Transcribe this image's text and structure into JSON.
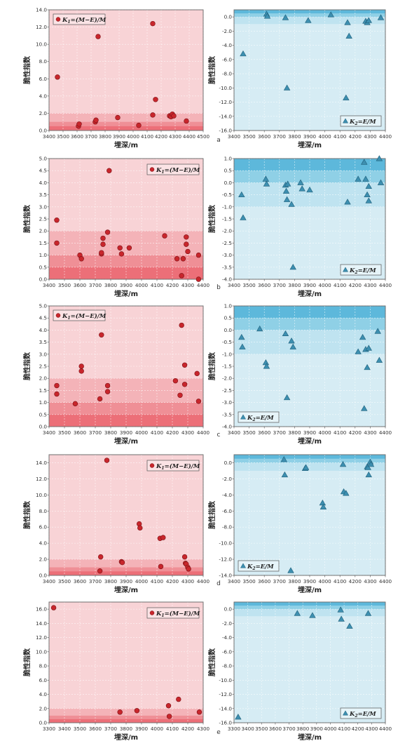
{
  "common": {
    "ylabel": "脆性指数",
    "xlabel": "埋深/m",
    "legend_k1": "K1=(M−E)/M",
    "legend_k2": "K2=E/M",
    "colors": {
      "red_bg": "#f8d3d6",
      "red_band1": "#f4b3b8",
      "red_band2": "#ef8f96",
      "red_band3": "#ec6f78",
      "red_marker": "#c8262c",
      "blue_bg": "#d6ecf4",
      "blue_band1": "#bfe3f0",
      "blue_band2": "#8fd0e6",
      "blue_band3": "#5db8db",
      "blue_marker": "#3d8fb0"
    }
  },
  "chart_data": [
    {
      "panel": "a",
      "side": "left",
      "type": "scatter",
      "legend": "K1=(M−E)/M",
      "legend_pos": "top-left",
      "xlim": [
        3400,
        4500
      ],
      "xticks": [
        3400,
        3500,
        3600,
        3700,
        3800,
        3900,
        4000,
        4100,
        4200,
        4300,
        4400,
        4500
      ],
      "ylim": [
        0,
        14
      ],
      "yticks": [
        0,
        2,
        4,
        6,
        8,
        10,
        12,
        14
      ],
      "ytick_fmt": 1,
      "bands": [
        2,
        1,
        0.5
      ],
      "x": [
        3460,
        3610,
        3615,
        3730,
        3735,
        3750,
        3890,
        4040,
        4140,
        4140,
        4160,
        4260,
        4270,
        4280,
        4290,
        4380
      ],
      "y": [
        6.2,
        0.5,
        0.75,
        1.0,
        1.2,
        10.9,
        1.5,
        0.6,
        12.4,
        1.8,
        3.6,
        1.7,
        1.6,
        1.9,
        1.7,
        1.1
      ]
    },
    {
      "panel": "a",
      "side": "right",
      "type": "scatter",
      "legend": "K2=E/M",
      "legend_pos": "bottom-right",
      "xlim": [
        3400,
        4400
      ],
      "xticks": [
        3400,
        3500,
        3600,
        3700,
        3800,
        3900,
        4000,
        4100,
        4200,
        4300,
        4400
      ],
      "ylim": [
        -16,
        1
      ],
      "yticks": [
        0,
        -2,
        -4,
        -6,
        -8,
        -10,
        -12,
        -14,
        -16
      ],
      "ytick_fmt": 1,
      "bands": [
        1,
        0.5,
        0
      ],
      "x": [
        3460,
        3615,
        3620,
        3740,
        3750,
        3890,
        4040,
        4140,
        4150,
        4160,
        4270,
        4280,
        4290,
        4370
      ],
      "y": [
        -5.2,
        0.4,
        0.1,
        -0.1,
        -10.0,
        -0.5,
        0.3,
        -11.4,
        -0.8,
        -2.7,
        -0.6,
        -0.8,
        -0.5,
        -0.1
      ]
    },
    {
      "panel": "b",
      "side": "left",
      "type": "scatter",
      "legend": "K1=(M−E)/M",
      "legend_pos": "top-right",
      "xlim": [
        3400,
        4400
      ],
      "xticks": [
        3400,
        3500,
        3600,
        3700,
        3800,
        3900,
        4000,
        4100,
        4200,
        4300,
        4400
      ],
      "ylim": [
        0,
        5
      ],
      "yticks": [
        0,
        0.5,
        1,
        1.5,
        2,
        2.5,
        3,
        3.5,
        4,
        4.5,
        5
      ],
      "ytick_fmt": 1,
      "bands": [
        2,
        1,
        0.5
      ],
      "x": [
        3450,
        3450,
        3600,
        3610,
        3740,
        3740,
        3750,
        3750,
        3780,
        3790,
        3860,
        3870,
        3920,
        4150,
        4230,
        4260,
        4270,
        4290,
        4290,
        4300,
        4370,
        4370
      ],
      "y": [
        2.45,
        1.5,
        1.0,
        0.85,
        1.05,
        1.1,
        1.45,
        1.7,
        1.95,
        4.5,
        1.3,
        1.05,
        1.3,
        1.8,
        0.85,
        0.15,
        0.85,
        1.75,
        1.45,
        1.15,
        0.0,
        1.0
      ]
    },
    {
      "panel": "b",
      "side": "right",
      "type": "scatter",
      "legend": "K2=E/M",
      "legend_pos": "bottom-right",
      "xlim": [
        3400,
        4400
      ],
      "xticks": [
        3400,
        3500,
        3600,
        3700,
        3800,
        3900,
        4000,
        4100,
        4200,
        4300,
        4400
      ],
      "ylim": [
        -4,
        1
      ],
      "yticks": [
        1,
        0.5,
        0,
        -0.5,
        -1,
        -1.5,
        -2,
        -2.5,
        -3,
        -3.5,
        -4
      ],
      "ytick_fmt": 1,
      "bands": [
        1,
        0.5,
        0
      ],
      "x": [
        3450,
        3460,
        3610,
        3615,
        3740,
        3745,
        3750,
        3755,
        3780,
        3790,
        3840,
        3850,
        3900,
        4150,
        4220,
        4260,
        4270,
        4280,
        4290,
        4290,
        4360,
        4370
      ],
      "y": [
        -0.5,
        -1.45,
        0.15,
        -0.05,
        -0.1,
        -0.35,
        -0.7,
        -0.05,
        -0.9,
        -3.5,
        0.0,
        -0.25,
        -0.3,
        -0.8,
        0.15,
        0.85,
        0.15,
        -0.5,
        -0.75,
        -0.15,
        1.0,
        0.0
      ]
    },
    {
      "panel": "c",
      "side": "left",
      "type": "scatter",
      "legend": "K1=(M−E)/M",
      "legend_pos": "top-left",
      "xlim": [
        3400,
        4400
      ],
      "xticks": [
        3400,
        3500,
        3600,
        3700,
        3800,
        3900,
        4000,
        4100,
        4200,
        4300,
        4400
      ],
      "ylim": [
        0,
        5
      ],
      "yticks": [
        0,
        0.5,
        1,
        1.5,
        2,
        2.5,
        3,
        3.5,
        4,
        4.5,
        5
      ],
      "ytick_fmt": 1,
      "bands": [
        2,
        1,
        0.5
      ],
      "x": [
        3450,
        3450,
        3570,
        3610,
        3610,
        3730,
        3740,
        3780,
        3780,
        4220,
        4250,
        4260,
        4280,
        4280,
        4360,
        4370
      ],
      "y": [
        1.7,
        1.35,
        0.95,
        2.5,
        2.3,
        1.15,
        3.8,
        1.7,
        1.45,
        1.9,
        1.3,
        4.2,
        1.75,
        2.55,
        2.2,
        1.05
      ]
    },
    {
      "panel": "c",
      "side": "right",
      "type": "scatter",
      "legend": "K2=E/M",
      "legend_pos": "bottom-left",
      "xlim": [
        3400,
        4400
      ],
      "xticks": [
        3400,
        3500,
        3600,
        3700,
        3800,
        3900,
        4000,
        4100,
        4200,
        4300,
        4400
      ],
      "ylim": [
        -4,
        1
      ],
      "yticks": [
        1,
        0.5,
        0,
        -0.5,
        -1,
        -1.5,
        -2,
        -2.5,
        -3,
        -3.5,
        -4
      ],
      "ytick_fmt": 1,
      "bands": [
        1,
        0.5,
        0
      ],
      "x": [
        3450,
        3455,
        3570,
        3610,
        3615,
        3740,
        3750,
        3780,
        3790,
        4220,
        4250,
        4260,
        4270,
        4280,
        4290,
        4350,
        4360
      ],
      "y": [
        -0.3,
        -0.7,
        0.05,
        -1.35,
        -1.5,
        -0.15,
        -2.8,
        -0.45,
        -0.7,
        -0.9,
        -0.3,
        -3.25,
        -0.8,
        -1.55,
        -0.75,
        -0.05,
        -1.25
      ]
    },
    {
      "panel": "d",
      "side": "left",
      "type": "scatter",
      "legend": "K1=(M−E)/M",
      "legend_pos": "top-right",
      "xlim": [
        3400,
        4400
      ],
      "xticks": [
        3400,
        3500,
        3600,
        3700,
        3800,
        3900,
        4000,
        4100,
        4200,
        4300,
        4400
      ],
      "ylim": [
        0,
        15
      ],
      "yticks": [
        0,
        2,
        4,
        6,
        8,
        10,
        12,
        14
      ],
      "ytick_fmt": 1,
      "bands": [
        2,
        1,
        0.5
      ],
      "x": [
        3730,
        3735,
        3775,
        3870,
        3875,
        3985,
        3990,
        4120,
        4125,
        4140,
        4280,
        4285,
        4290,
        4300,
        4305
      ],
      "y": [
        0.55,
        2.3,
        14.3,
        1.7,
        1.6,
        6.4,
        5.9,
        4.6,
        1.1,
        4.7,
        2.3,
        1.5,
        1.4,
        1.0,
        0.8
      ]
    },
    {
      "panel": "d",
      "side": "right",
      "type": "scatter",
      "legend": "K2=E/M",
      "legend_pos": "bottom-left",
      "xlim": [
        3400,
        4400
      ],
      "xticks": [
        3400,
        3500,
        3600,
        3700,
        3800,
        3900,
        4000,
        4100,
        4200,
        4300,
        4400
      ],
      "ylim": [
        -14,
        1
      ],
      "yticks": [
        0,
        -2,
        -4,
        -6,
        -8,
        -10,
        -12,
        -14
      ],
      "ytick_fmt": 1,
      "bands": [
        1,
        0.5,
        0
      ],
      "x": [
        3730,
        3735,
        3775,
        3870,
        3875,
        3985,
        3990,
        4120,
        4125,
        4140,
        4280,
        4285,
        4290,
        4300,
        4305
      ],
      "y": [
        0.4,
        -1.5,
        -13.4,
        -0.7,
        -0.6,
        -5.0,
        -5.5,
        -0.2,
        -3.6,
        -3.8,
        -0.5,
        -0.6,
        -1.5,
        0.1,
        -0.2
      ]
    },
    {
      "panel": "e",
      "side": "left",
      "type": "scatter",
      "legend": "K1=(M−E)/M",
      "legend_pos": "top-right",
      "xlim": [
        3300,
        4300
      ],
      "xticks": [
        3300,
        3400,
        3500,
        3600,
        3700,
        3800,
        3900,
        4000,
        4100,
        4200,
        4300
      ],
      "ylim": [
        0,
        17
      ],
      "yticks": [
        0,
        2,
        4,
        6,
        8,
        10,
        12,
        14,
        16
      ],
      "ytick_fmt": 1,
      "bands": [
        2,
        1,
        0.5
      ],
      "x": [
        3330,
        3760,
        3870,
        4075,
        4080,
        4140,
        4275
      ],
      "y": [
        16.2,
        1.5,
        1.7,
        2.4,
        0.9,
        3.3,
        1.5
      ]
    },
    {
      "panel": "e",
      "side": "right",
      "type": "scatter",
      "legend": "K2=E/M",
      "legend_pos": "bottom-right",
      "xlim": [
        3300,
        4400
      ],
      "xticks": [
        3300,
        3400,
        3500,
        3600,
        3700,
        3800,
        3900,
        4000,
        4100,
        4200,
        4300,
        4400
      ],
      "ylim": [
        -16,
        1
      ],
      "yticks": [
        0,
        -2,
        -4,
        -6,
        -8,
        -10,
        -12,
        -14,
        -16
      ],
      "ytick_fmt": 1,
      "bands": [
        1,
        0.5,
        0
      ],
      "x": [
        3330,
        3760,
        3870,
        4075,
        4080,
        4140,
        4275
      ],
      "y": [
        -15.2,
        -0.6,
        -0.9,
        -0.1,
        -1.4,
        -2.4,
        -0.6
      ]
    }
  ]
}
